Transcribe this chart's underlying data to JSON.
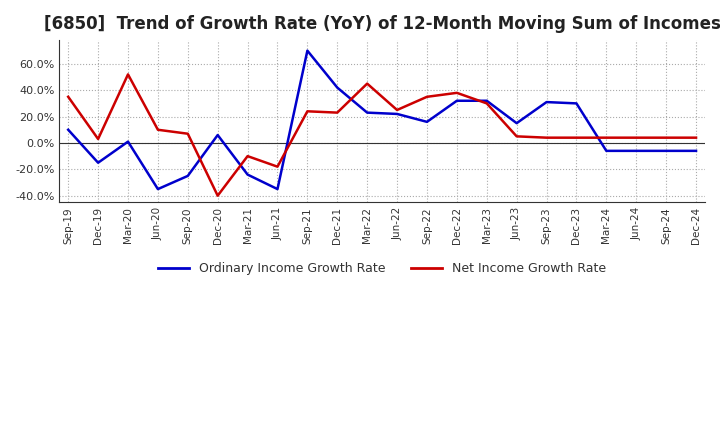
{
  "title": "[6850]  Trend of Growth Rate (YoY) of 12-Month Moving Sum of Incomes",
  "title_fontsize": 12,
  "legend_labels": [
    "Ordinary Income Growth Rate",
    "Net Income Growth Rate"
  ],
  "legend_colors": [
    "#0000cc",
    "#cc0000"
  ],
  "x_labels": [
    "Sep-19",
    "Dec-19",
    "Mar-20",
    "Jun-20",
    "Sep-20",
    "Dec-20",
    "Mar-21",
    "Jun-21",
    "Sep-21",
    "Dec-21",
    "Mar-22",
    "Jun-22",
    "Sep-22",
    "Dec-22",
    "Mar-23",
    "Jun-23",
    "Sep-23",
    "Dec-23",
    "Mar-24",
    "Jun-24",
    "Sep-24",
    "Dec-24"
  ],
  "ordinary_income": [
    10.0,
    -15.0,
    1.0,
    -35.0,
    -25.0,
    6.0,
    -24.0,
    -35.0,
    70.0,
    42.0,
    23.0,
    22.0,
    16.0,
    32.0,
    32.0,
    15.0,
    31.0,
    30.0,
    -6.0,
    -6.0,
    -6.0,
    -6.0
  ],
  "net_income": [
    35.0,
    3.0,
    52.0,
    10.0,
    7.0,
    -40.0,
    -10.0,
    -18.0,
    24.0,
    23.0,
    45.0,
    25.0,
    35.0,
    38.0,
    30.0,
    5.0,
    4.0,
    4.0,
    4.0,
    4.0,
    4.0,
    4.0
  ],
  "ylim": [
    -45,
    78
  ],
  "yticks": [
    -40.0,
    -20.0,
    0.0,
    20.0,
    40.0,
    60.0
  ],
  "background_color": "#ffffff",
  "grid_color": "#aaaaaa",
  "plot_bg_color": "#ffffff"
}
